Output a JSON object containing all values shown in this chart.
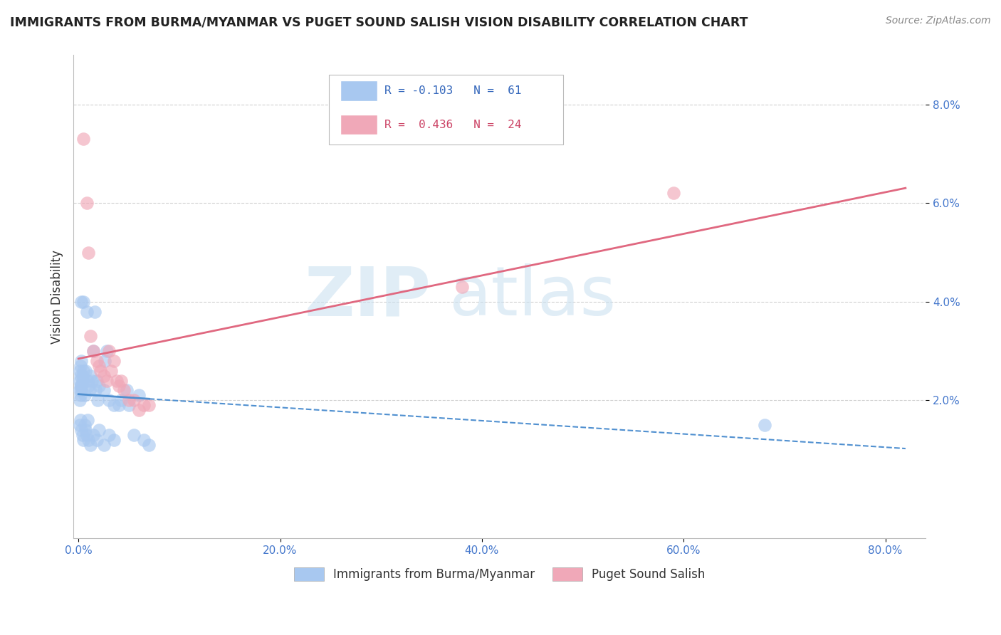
{
  "title": "IMMIGRANTS FROM BURMA/MYANMAR VS PUGET SOUND SALISH VISION DISABILITY CORRELATION CHART",
  "source": "Source: ZipAtlas.com",
  "ylabel": "Vision Disability",
  "xlabel_ticks": [
    "0.0%",
    "20.0%",
    "40.0%",
    "60.0%",
    "80.0%"
  ],
  "xlabel_vals": [
    0.0,
    0.2,
    0.4,
    0.6,
    0.8
  ],
  "ylabel_ticks": [
    "2.0%",
    "4.0%",
    "6.0%",
    "8.0%"
  ],
  "ylabel_vals": [
    0.02,
    0.04,
    0.06,
    0.08
  ],
  "ylim": [
    -0.008,
    0.09
  ],
  "xlim": [
    -0.005,
    0.84
  ],
  "blue_R": -0.103,
  "blue_N": 61,
  "pink_R": 0.436,
  "pink_N": 24,
  "blue_label": "Immigrants from Burma/Myanmar",
  "pink_label": "Puget Sound Salish",
  "blue_color": "#a8c8f0",
  "pink_color": "#f0a8b8",
  "blue_edge_color": "#7aaae0",
  "pink_edge_color": "#e888a8",
  "blue_line_color": "#5090d0",
  "pink_line_color": "#e06880",
  "background_color": "#ffffff",
  "grid_color": "#cccccc",
  "watermark_zip": "ZIP",
  "watermark_atlas": "atlas",
  "blue_dots": [
    [
      0.001,
      0.026
    ],
    [
      0.002,
      0.025
    ],
    [
      0.003,
      0.028
    ],
    [
      0.004,
      0.024
    ],
    [
      0.001,
      0.022
    ],
    [
      0.002,
      0.027
    ],
    [
      0.003,
      0.023
    ],
    [
      0.005,
      0.026
    ],
    [
      0.001,
      0.02
    ],
    [
      0.002,
      0.021
    ],
    [
      0.003,
      0.022
    ],
    [
      0.004,
      0.025
    ],
    [
      0.001,
      0.024
    ],
    [
      0.002,
      0.023
    ],
    [
      0.006,
      0.021
    ],
    [
      0.007,
      0.026
    ],
    [
      0.008,
      0.038
    ],
    [
      0.009,
      0.024
    ],
    [
      0.01,
      0.023
    ],
    [
      0.011,
      0.022
    ],
    [
      0.012,
      0.025
    ],
    [
      0.013,
      0.024
    ],
    [
      0.003,
      0.04
    ],
    [
      0.005,
      0.04
    ],
    [
      0.015,
      0.03
    ],
    [
      0.016,
      0.038
    ],
    [
      0.017,
      0.022
    ],
    [
      0.018,
      0.024
    ],
    [
      0.019,
      0.02
    ],
    [
      0.02,
      0.023
    ],
    [
      0.025,
      0.022
    ],
    [
      0.026,
      0.028
    ],
    [
      0.028,
      0.03
    ],
    [
      0.03,
      0.02
    ],
    [
      0.035,
      0.019
    ],
    [
      0.04,
      0.019
    ],
    [
      0.042,
      0.02
    ],
    [
      0.048,
      0.022
    ],
    [
      0.05,
      0.019
    ],
    [
      0.06,
      0.021
    ],
    [
      0.001,
      0.015
    ],
    [
      0.002,
      0.016
    ],
    [
      0.003,
      0.014
    ],
    [
      0.004,
      0.013
    ],
    [
      0.005,
      0.012
    ],
    [
      0.006,
      0.015
    ],
    [
      0.007,
      0.014
    ],
    [
      0.008,
      0.013
    ],
    [
      0.009,
      0.016
    ],
    [
      0.01,
      0.012
    ],
    [
      0.012,
      0.011
    ],
    [
      0.015,
      0.013
    ],
    [
      0.018,
      0.012
    ],
    [
      0.02,
      0.014
    ],
    [
      0.025,
      0.011
    ],
    [
      0.03,
      0.013
    ],
    [
      0.035,
      0.012
    ],
    [
      0.055,
      0.013
    ],
    [
      0.065,
      0.012
    ],
    [
      0.07,
      0.011
    ],
    [
      0.68,
      0.015
    ]
  ],
  "pink_dots": [
    [
      0.005,
      0.073
    ],
    [
      0.008,
      0.06
    ],
    [
      0.01,
      0.05
    ],
    [
      0.012,
      0.033
    ],
    [
      0.015,
      0.03
    ],
    [
      0.018,
      0.028
    ],
    [
      0.02,
      0.027
    ],
    [
      0.022,
      0.026
    ],
    [
      0.025,
      0.025
    ],
    [
      0.028,
      0.024
    ],
    [
      0.03,
      0.03
    ],
    [
      0.032,
      0.026
    ],
    [
      0.035,
      0.028
    ],
    [
      0.038,
      0.024
    ],
    [
      0.04,
      0.023
    ],
    [
      0.042,
      0.024
    ],
    [
      0.045,
      0.022
    ],
    [
      0.05,
      0.02
    ],
    [
      0.055,
      0.02
    ],
    [
      0.06,
      0.018
    ],
    [
      0.065,
      0.019
    ],
    [
      0.07,
      0.019
    ],
    [
      0.38,
      0.043
    ],
    [
      0.59,
      0.062
    ]
  ]
}
